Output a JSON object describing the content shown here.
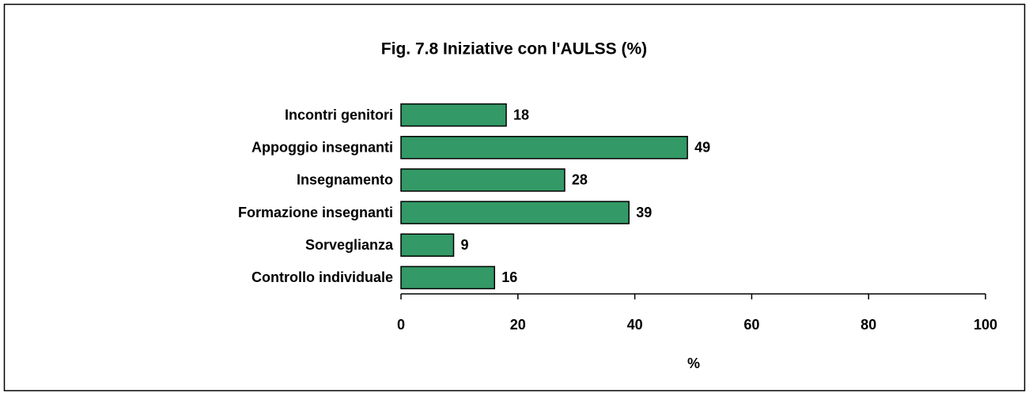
{
  "chart_data": {
    "type": "bar",
    "orientation": "horizontal",
    "title": "Fig. 7.8 Iniziative con l'AULSS (%)",
    "categories": [
      "Incontri genitori",
      "Appoggio insegnanti",
      "Insegnamento",
      "Formazione insegnanti",
      "Sorveglianza",
      "Controllo individuale"
    ],
    "values": [
      18,
      49,
      28,
      39,
      9,
      16
    ],
    "color": "#339966",
    "xlim": [
      0,
      100
    ],
    "xticks": [
      0,
      20,
      40,
      60,
      80,
      100
    ],
    "xlabel": "%",
    "grid": false
  }
}
